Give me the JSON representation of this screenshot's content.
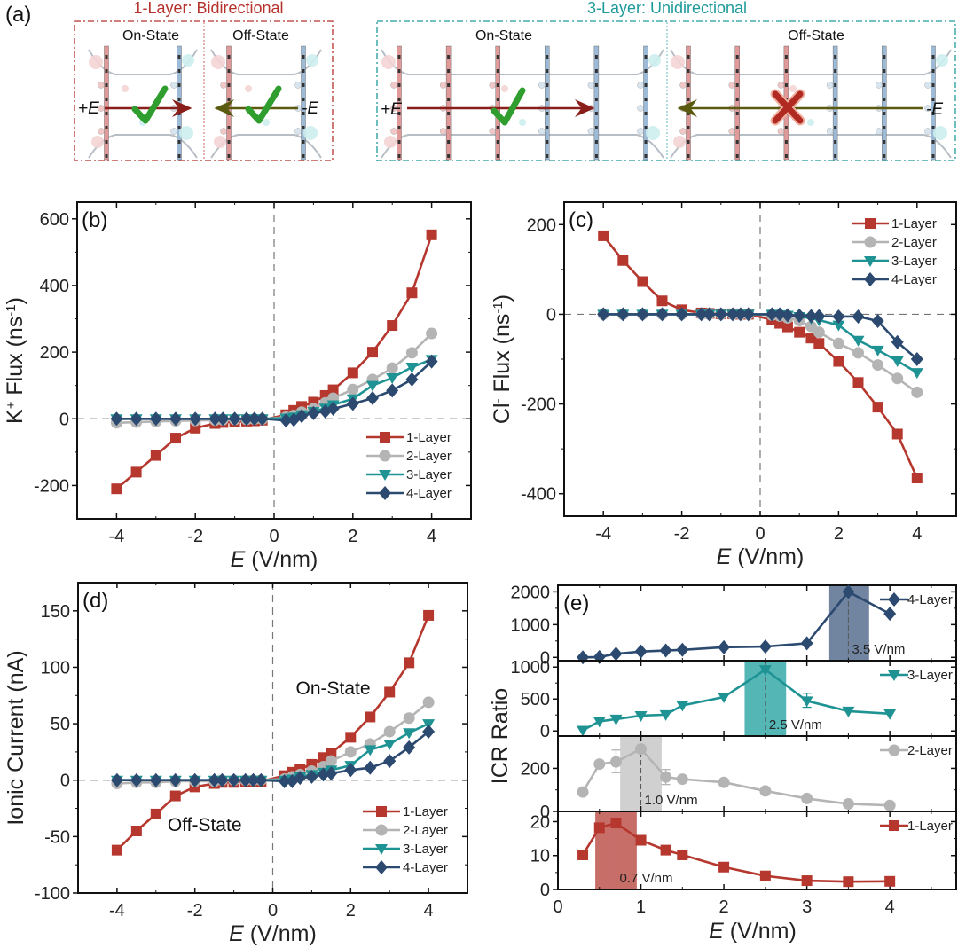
{
  "figure": {
    "panel_a": {
      "label": "(a)",
      "left_box": {
        "title": "1-Layer: Bidirectional",
        "color": "#b5312b",
        "on_state": "On-State",
        "off_state": "Off-State",
        "plus_field": "+E",
        "minus_field": "-E",
        "on_result": "check-icon",
        "off_result": "check-icon"
      },
      "right_box": {
        "title": "3-Layer: Unidirectional",
        "color": "#1f9a9a",
        "on_state": "On-State",
        "off_state": "Off-State",
        "plus_field": "+E",
        "minus_field": "-E",
        "on_result": "check-icon",
        "off_result": "cross-icon"
      }
    },
    "series_styles": [
      {
        "name": "1-Layer",
        "color": "#b5372e",
        "marker": "square"
      },
      {
        "name": "2-Layer",
        "color": "#b4b4b4",
        "marker": "circle"
      },
      {
        "name": "3-Layer",
        "color": "#1f9393",
        "marker": "triangle-down"
      },
      {
        "name": "4-Layer",
        "color": "#2c4a70",
        "marker": "diamond"
      }
    ]
  },
  "chart_data": [
    {
      "id": "b",
      "type": "line",
      "panel_label": "(b)",
      "title": "",
      "xlabel": "E (V/nm)",
      "ylabel": "K+ Flux (ns-1)",
      "ylabel_main": "K",
      "ylabel_sup1": "+",
      "ylabel_rest": " Flux (ns",
      "ylabel_sup2": "-1",
      "ylabel_end": ")",
      "xlim": [
        -5,
        5
      ],
      "ylim": [
        -300,
        650
      ],
      "xticks": [
        -4,
        -2,
        0,
        2,
        4
      ],
      "yticks": [
        -200,
        0,
        200,
        400,
        600
      ],
      "legend": "bottom-right",
      "zero_lines": true,
      "x": [
        -4,
        -3.5,
        -3,
        -2.5,
        -2,
        -1.5,
        -1.3,
        -1,
        -0.7,
        -0.5,
        -0.3,
        0.3,
        0.5,
        0.7,
        1,
        1.3,
        1.5,
        2,
        2.5,
        3,
        3.5,
        4
      ],
      "series": [
        {
          "name": "1-Layer",
          "values": [
            -210,
            -160,
            -110,
            -58,
            -28,
            -14,
            -11,
            -9,
            -7,
            -6,
            -4,
            12,
            25,
            37,
            50,
            70,
            87,
            138,
            200,
            280,
            378,
            552
          ]
        },
        {
          "name": "2-Layer",
          "values": [
            -12,
            -10,
            -8,
            -6,
            -5,
            -4,
            -3,
            -2,
            -2,
            -1,
            -1,
            5,
            10,
            20,
            30,
            48,
            62,
            88,
            118,
            152,
            198,
            256
          ]
        },
        {
          "name": "3-Layer",
          "values": [
            0,
            0,
            0,
            0,
            0,
            0,
            0,
            0,
            0,
            0,
            0,
            2,
            5,
            12,
            22,
            32,
            42,
            60,
            100,
            123,
            155,
            178
          ]
        },
        {
          "name": "4-Layer",
          "values": [
            0,
            0,
            0,
            0,
            0,
            0,
            0,
            0,
            0,
            0,
            0,
            -5,
            -3,
            8,
            17,
            22,
            30,
            45,
            62,
            85,
            118,
            172
          ]
        }
      ]
    },
    {
      "id": "c",
      "type": "line",
      "panel_label": "(c)",
      "title": "",
      "xlabel": "E (V/nm)",
      "ylabel": "Cl- Flux (ns-1)",
      "ylabel_main": "Cl",
      "ylabel_sup1": "-",
      "ylabel_rest": " Flux (ns",
      "ylabel_sup2": "-1",
      "ylabel_end": ")",
      "xlim": [
        -5,
        5
      ],
      "ylim": [
        -450,
        250
      ],
      "xticks": [
        -4,
        -2,
        0,
        2,
        4
      ],
      "yticks": [
        -400,
        -200,
        0,
        200
      ],
      "legend": "top-right",
      "zero_lines": true,
      "x": [
        -4,
        -3.5,
        -3,
        -2.5,
        -2,
        -1.5,
        -1.3,
        -1,
        -0.7,
        -0.5,
        -0.3,
        0.3,
        0.5,
        0.7,
        1,
        1.3,
        1.5,
        2,
        2.5,
        3,
        3.5,
        4
      ],
      "series": [
        {
          "name": "1-Layer",
          "values": [
            175,
            120,
            73,
            30,
            10,
            3,
            2,
            1,
            1,
            0,
            0,
            -12,
            -20,
            -28,
            -40,
            -53,
            -65,
            -105,
            -152,
            -207,
            -267,
            -365
          ]
        },
        {
          "name": "2-Layer",
          "values": [
            0,
            0,
            0,
            0,
            0,
            0,
            0,
            0,
            0,
            0,
            0,
            -2,
            -4,
            -8,
            -14,
            -27,
            -40,
            -65,
            -86,
            -113,
            -143,
            -174
          ]
        },
        {
          "name": "3-Layer",
          "values": [
            0,
            0,
            0,
            0,
            0,
            0,
            0,
            0,
            0,
            0,
            0,
            0,
            -1,
            -2,
            -5,
            -9,
            -13,
            -24,
            -58,
            -80,
            -104,
            -130
          ]
        },
        {
          "name": "4-Layer",
          "values": [
            0,
            0,
            0,
            0,
            0,
            0,
            0,
            0,
            0,
            0,
            0,
            0,
            0,
            -2,
            -3,
            -4,
            -4,
            -5,
            -5,
            -15,
            -62,
            -100
          ]
        }
      ]
    },
    {
      "id": "d",
      "type": "line",
      "panel_label": "(d)",
      "title": "",
      "xlabel": "E (V/nm)",
      "ylabel": "Ionic Current (nA)",
      "xlim": [
        -5,
        5
      ],
      "ylim": [
        -100,
        175
      ],
      "xticks": [
        -4,
        -2,
        0,
        2,
        4
      ],
      "yticks": [
        -100,
        -50,
        0,
        50,
        100,
        150
      ],
      "legend": "bottom-right",
      "zero_lines": true,
      "annotations": [
        {
          "text": "On-State",
          "x": 1.55,
          "y": 76
        },
        {
          "text": "Off-State",
          "x": -1.75,
          "y": -45
        }
      ],
      "x": [
        -4,
        -3.5,
        -3,
        -2.5,
        -2,
        -1.5,
        -1.3,
        -1,
        -0.7,
        -0.5,
        -0.3,
        0.3,
        0.5,
        0.7,
        1,
        1.3,
        1.5,
        2,
        2.5,
        3,
        3.5,
        4
      ],
      "series": [
        {
          "name": "1-Layer",
          "values": [
            -62,
            -45,
            -30,
            -14,
            -6,
            -3,
            -2,
            -2,
            -1,
            -1,
            -1,
            4,
            7,
            10,
            14,
            20,
            24,
            38,
            56,
            78,
            104,
            146
          ]
        },
        {
          "name": "2-Layer",
          "values": [
            -3,
            -2,
            -2,
            -1,
            -1,
            -1,
            0,
            0,
            0,
            0,
            0,
            1,
            3,
            5,
            8,
            12,
            17,
            25,
            32,
            43,
            55,
            69
          ]
        },
        {
          "name": "3-Layer",
          "values": [
            0,
            0,
            0,
            0,
            0,
            0,
            0,
            0,
            0,
            0,
            0,
            0,
            1,
            3,
            5,
            7,
            9,
            13,
            27,
            32,
            42,
            50
          ]
        },
        {
          "name": "4-Layer",
          "values": [
            0,
            0,
            0,
            0,
            0,
            0,
            0,
            0,
            0,
            0,
            0,
            -1,
            -1,
            2,
            3,
            5,
            6,
            9,
            11,
            17,
            29,
            43
          ]
        }
      ]
    },
    {
      "id": "e",
      "type": "line",
      "panel_label": "(e)",
      "title": "",
      "xlabel": "E (V/nm)",
      "ylabel": "ICR Ratio",
      "xlim": [
        0,
        4.8
      ],
      "xticks": [
        0,
        1,
        2,
        3,
        4
      ],
      "legend": "top-right of each subplot",
      "subplots": [
        {
          "name": "4-Layer",
          "ylim": [
            -100,
            2200
          ],
          "yticks": [
            0,
            1000,
            2000
          ],
          "x": [
            0.3,
            0.5,
            0.7,
            1,
            1.3,
            1.5,
            2,
            2.5,
            3,
            3.5,
            4
          ],
          "values": [
            0,
            10,
            110,
            180,
            210,
            230,
            310,
            330,
            430,
            2000,
            1330
          ],
          "highlight_x": 3.5,
          "highlight_band": [
            3.27,
            3.75
          ],
          "highlight_label": "3.5 V/nm"
        },
        {
          "name": "3-Layer",
          "ylim": [
            -80,
            1100
          ],
          "yticks": [
            0,
            500,
            1000
          ],
          "x": [
            0.3,
            0.5,
            0.7,
            1,
            1.3,
            1.5,
            2,
            2.5,
            3,
            3.5,
            4
          ],
          "values": [
            10,
            150,
            185,
            240,
            255,
            400,
            530,
            960,
            470,
            310,
            270
          ],
          "error_bars": [
            {
              "x": 3,
              "low": 370,
              "high": 590
            }
          ],
          "highlight_x": 2.5,
          "highlight_band": [
            2.25,
            2.75
          ],
          "highlight_label": "2.5 V/nm"
        },
        {
          "name": "2-Layer",
          "ylim": [
            0,
            350
          ],
          "yticks": [
            0,
            200
          ],
          "x": [
            0.3,
            0.5,
            0.7,
            1,
            1.3,
            1.5,
            2,
            2.5,
            3,
            3.5,
            4
          ],
          "values": [
            90,
            220,
            230,
            290,
            160,
            150,
            135,
            95,
            60,
            35,
            28
          ],
          "error_bars": [
            {
              "x": 0.7,
              "low": 180,
              "high": 285
            },
            {
              "x": 1.3,
              "low": 125,
              "high": 195
            }
          ],
          "highlight_x": 1.0,
          "highlight_band": [
            0.75,
            1.25
          ],
          "highlight_label": "1.0 V/nm"
        },
        {
          "name": "1-Layer",
          "ylim": [
            0,
            23
          ],
          "yticks": [
            0,
            10,
            20
          ],
          "x": [
            0.3,
            0.5,
            0.7,
            1,
            1.3,
            1.5,
            2,
            2.5,
            3,
            3.5,
            4
          ],
          "values": [
            10.2,
            18.2,
            19.6,
            14.5,
            11.6,
            10.2,
            6.6,
            4.0,
            2.6,
            2.3,
            2.4
          ],
          "highlight_x": 0.7,
          "highlight_band": [
            0.45,
            0.95
          ],
          "highlight_label": "0.7 V/nm"
        }
      ]
    }
  ]
}
